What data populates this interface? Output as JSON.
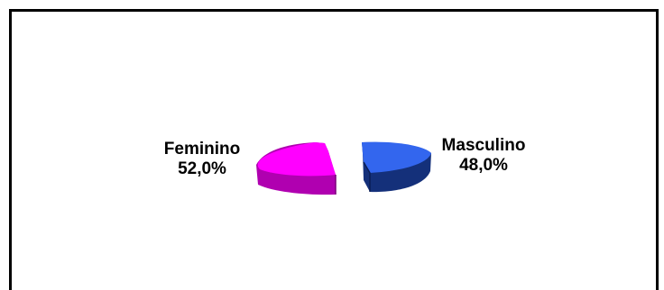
{
  "chart_data": {
    "type": "pie",
    "style": "3d exploded",
    "title": "",
    "slices": [
      {
        "label": "Feminino",
        "value": 52.0,
        "value_label": "52,0%",
        "color": "#ff00ff",
        "side_color": "#b000b0"
      },
      {
        "label": "Masculino",
        "value": 48.0,
        "value_label": "48,0%",
        "color": "#3366ee",
        "side_color": "#14307a"
      }
    ]
  }
}
